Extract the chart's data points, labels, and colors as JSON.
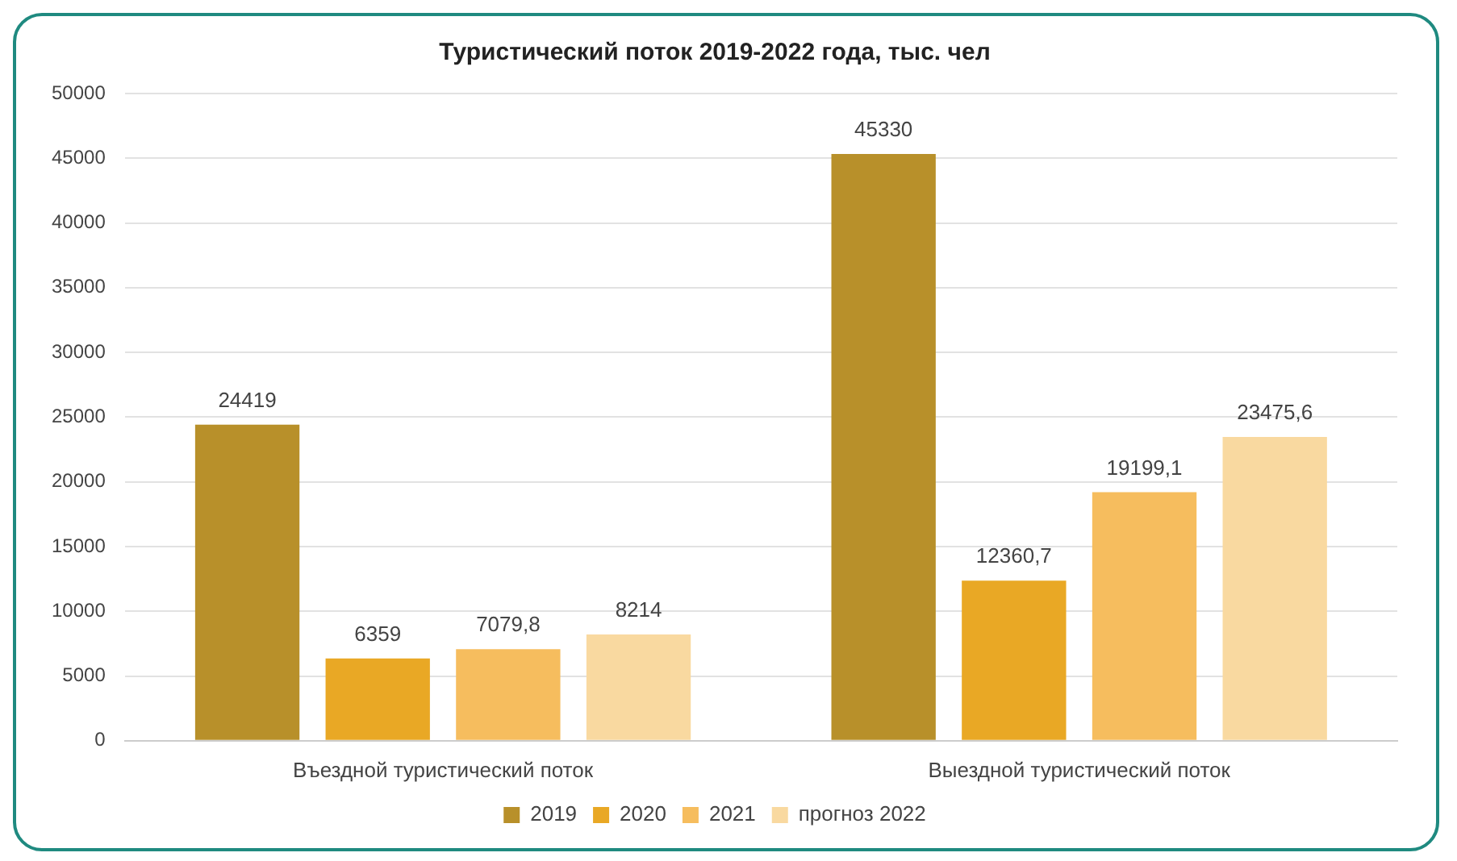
{
  "chart_data": {
    "type": "bar",
    "title": "Туристический поток 2019-2022 года, тыс. чел",
    "categories": [
      "Въездной туристический поток",
      "Выездной туристический поток"
    ],
    "series": [
      {
        "name": "2019",
        "color": "#b8902a",
        "values": [
          24419,
          45330
        ],
        "value_labels": [
          "24419",
          "45330"
        ]
      },
      {
        "name": "2020",
        "color": "#e9a825",
        "values": [
          6359,
          12360.7
        ],
        "value_labels": [
          "6359",
          "12360,7"
        ]
      },
      {
        "name": "2021",
        "color": "#f6bd5e",
        "values": [
          7079.8,
          19199.1
        ],
        "value_labels": [
          "7079,8",
          "19199,1"
        ]
      },
      {
        "name": "прогноз 2022",
        "color": "#f9d9a0",
        "values": [
          8214,
          23475.6
        ],
        "value_labels": [
          "8214",
          "23475,6"
        ]
      }
    ],
    "ylim": [
      0,
      50000
    ],
    "yticks": [
      0,
      5000,
      10000,
      15000,
      20000,
      25000,
      30000,
      35000,
      40000,
      45000,
      50000
    ],
    "grid": "y",
    "legend": "bottom"
  }
}
